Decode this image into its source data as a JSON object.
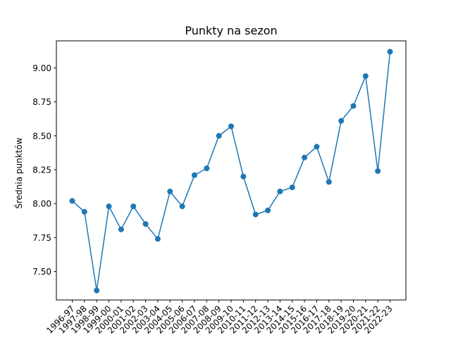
{
  "chart_data": {
    "type": "line",
    "title": "Punkty na sezon",
    "xlabel": "",
    "ylabel": "Średnia punktów",
    "categories": [
      "1996-97",
      "1997-98",
      "1998-99",
      "1999-00",
      "2000-01",
      "2001-02",
      "2002-03",
      "2003-04",
      "2004-05",
      "2005-06",
      "2006-07",
      "2007-08",
      "2008-09",
      "2009-10",
      "2010-11",
      "2011-12",
      "2012-13",
      "2013-14",
      "2014-15",
      "2015-16",
      "2016-17",
      "2017-18",
      "2018-19",
      "2019-20",
      "2020-21",
      "2021-22",
      "2022-23"
    ],
    "values": [
      8.02,
      7.94,
      7.36,
      7.98,
      7.81,
      7.98,
      7.85,
      7.74,
      8.09,
      7.98,
      8.21,
      8.26,
      8.5,
      8.57,
      8.2,
      7.92,
      7.95,
      8.09,
      8.12,
      8.34,
      8.42,
      8.16,
      8.61,
      8.72,
      8.94,
      8.24,
      9.12
    ],
    "ylim": [
      7.29,
      9.2
    ],
    "yticks": [
      7.5,
      7.75,
      8.0,
      8.25,
      8.5,
      8.75,
      9.0
    ],
    "ytick_labels": [
      "7.50",
      "7.75",
      "8.00",
      "8.25",
      "8.50",
      "8.75",
      "9.00"
    ],
    "grid": false,
    "color": "#1f77b4"
  }
}
